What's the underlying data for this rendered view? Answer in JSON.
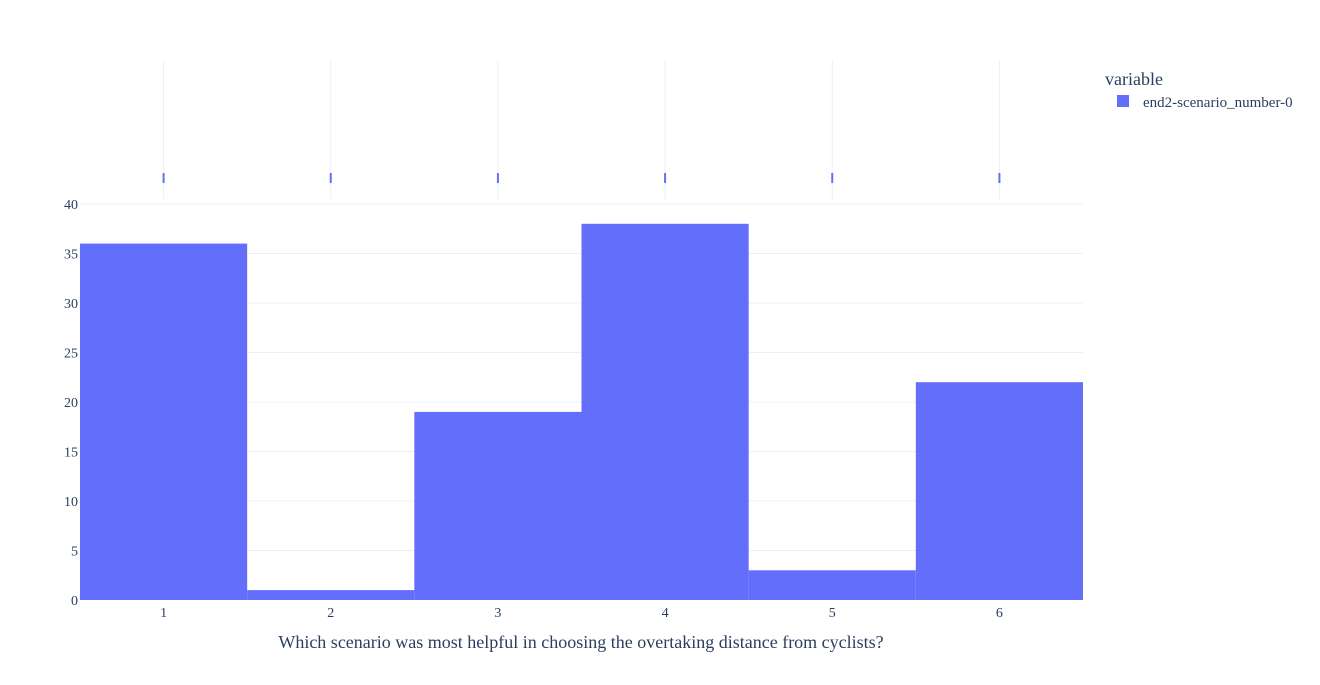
{
  "chart_data": {
    "type": "bar",
    "categories": [
      "1",
      "2",
      "3",
      "4",
      "5",
      "6"
    ],
    "series": [
      {
        "name": "end2-scenario_number-0",
        "values": [
          36,
          1,
          19,
          38,
          3,
          22
        ],
        "color": "#636efa"
      }
    ],
    "xlabel": "Which scenario was most helpful in choosing the overtaking distance from cyclists?",
    "ylabel": "",
    "ylim": [
      0,
      40
    ],
    "yticks": [
      0,
      5,
      10,
      15,
      20,
      25,
      30,
      35,
      40
    ],
    "grid": true,
    "gridColor": "#ebf0f8",
    "marginal": "rug",
    "legend": {
      "title": "variable",
      "placement": "top-right"
    }
  }
}
